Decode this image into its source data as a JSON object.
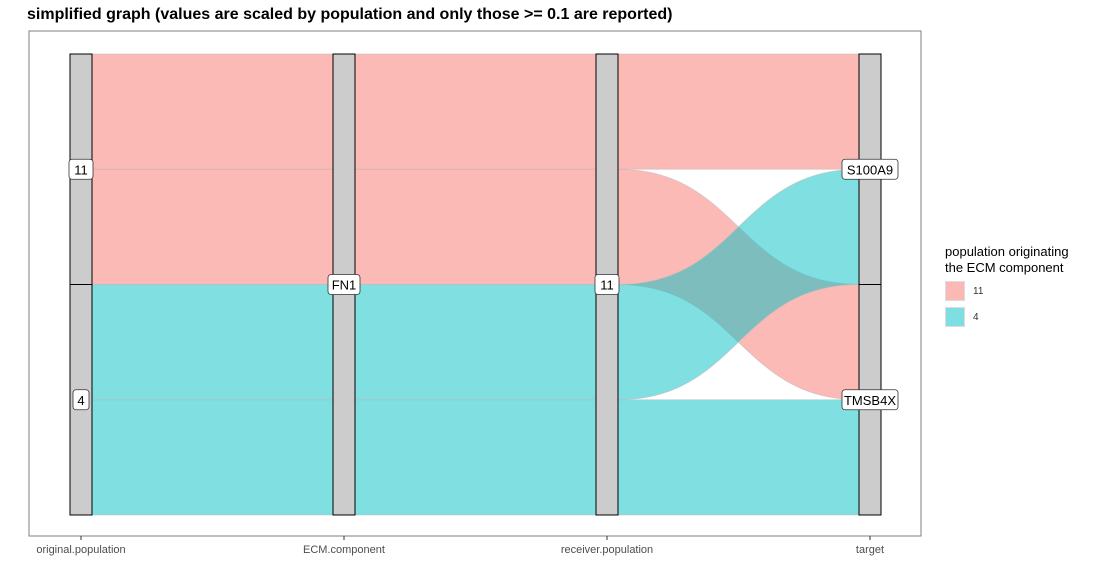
{
  "chart_data": {
    "type": "alluvial",
    "title": "simplified graph (values are scaled by population and only those >= 0.1 are reported)",
    "axes": [
      "original.population",
      "ECM.component",
      "receiver.population",
      "target"
    ],
    "strata": [
      [
        {
          "label": "11",
          "value": 0.5
        },
        {
          "label": "4",
          "value": 0.5
        }
      ],
      [
        {
          "label": "FN1",
          "value": 1.0
        }
      ],
      [
        {
          "label": "11",
          "value": 1.0
        }
      ],
      [
        {
          "label": "S100A9",
          "value": 0.5
        },
        {
          "label": "TMSB4X",
          "value": 0.5
        }
      ]
    ],
    "flows": [
      {
        "fill": "11",
        "path": [
          "11",
          "FN1",
          "11",
          "S100A9"
        ],
        "value": 0.25
      },
      {
        "fill": "11",
        "path": [
          "11",
          "FN1",
          "11",
          "TMSB4X"
        ],
        "value": 0.25
      },
      {
        "fill": "4",
        "path": [
          "4",
          "FN1",
          "11",
          "S100A9"
        ],
        "value": 0.25
      },
      {
        "fill": "4",
        "path": [
          "4",
          "FN1",
          "11",
          "TMSB4X"
        ],
        "value": 0.25
      }
    ],
    "legend": {
      "title_lines": [
        "population originating",
        "the ECM component"
      ],
      "position": "right",
      "items": [
        {
          "label": "11",
          "color": "#F8766D"
        },
        {
          "label": "4",
          "color": "#00BFC4"
        }
      ]
    },
    "colors": {
      "11": "#F8766D",
      "4": "#00BFC4",
      "stratum_fill": "#cccccc"
    }
  }
}
